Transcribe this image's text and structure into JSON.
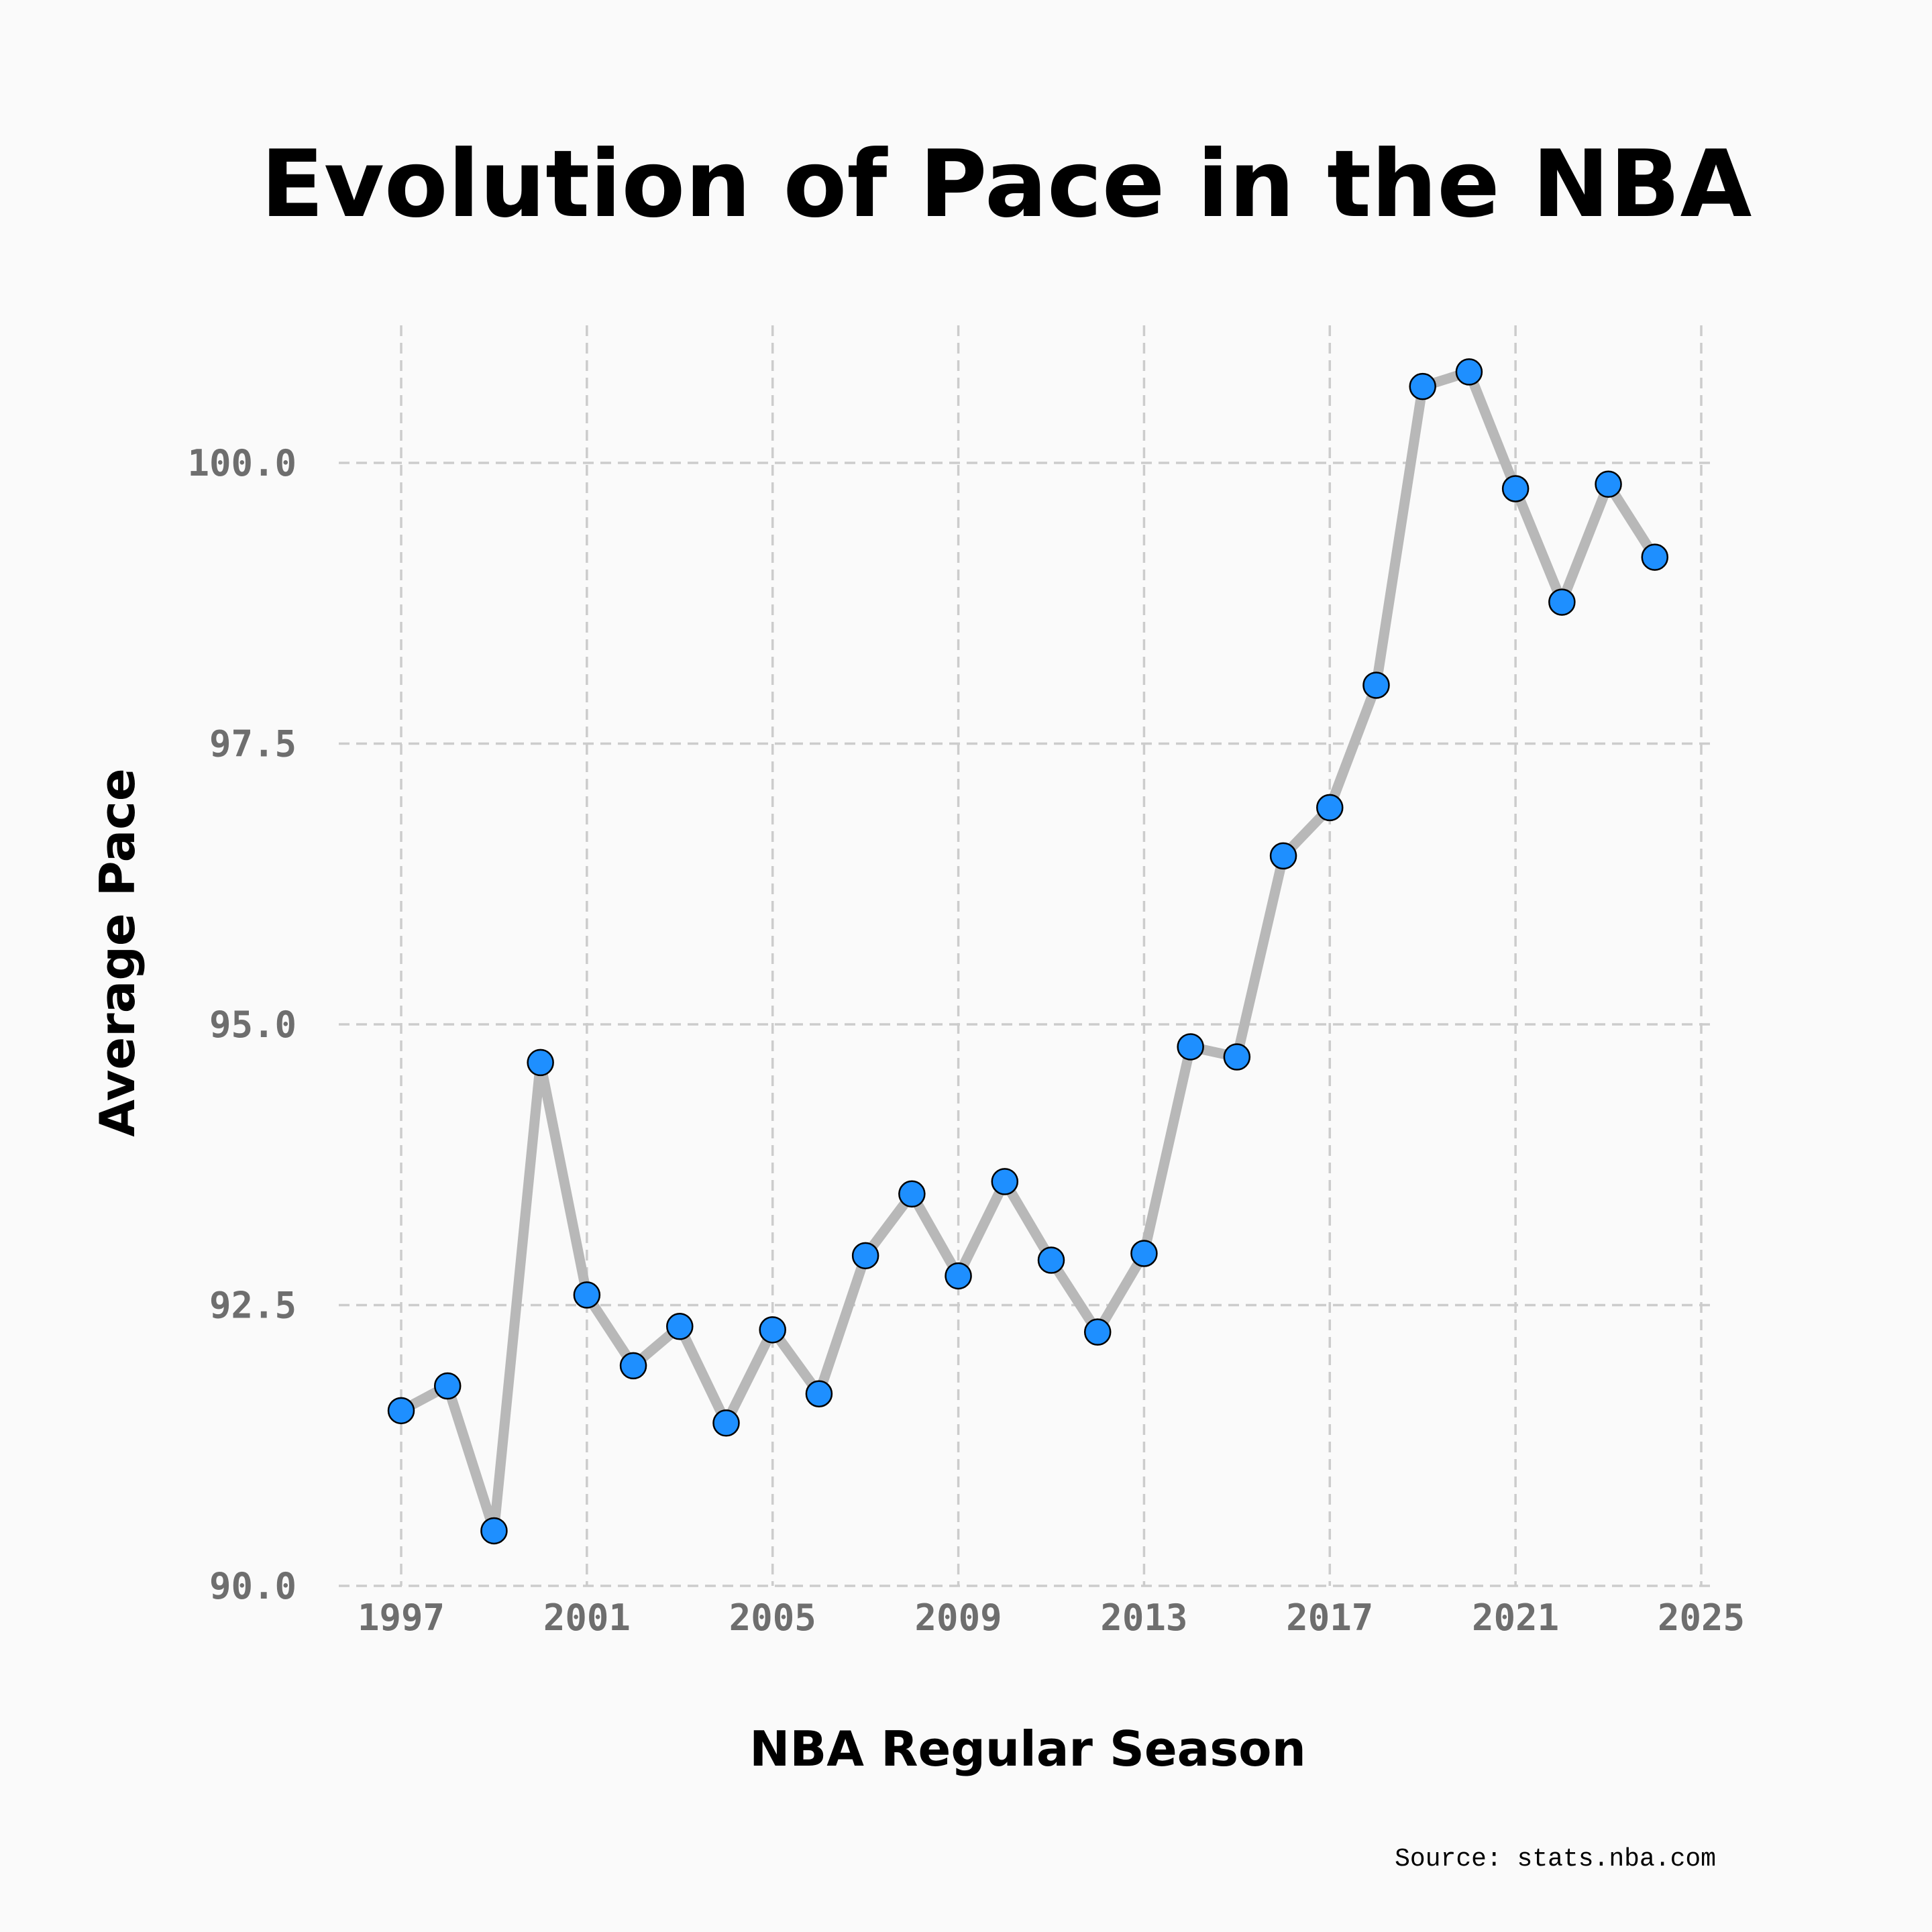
{
  "chart_data": {
    "type": "line",
    "title": "Evolution of Pace in the NBA",
    "xlabel": "NBA Regular Season",
    "ylabel": "Average Pace",
    "source": "Source: stats.nba.com",
    "xlim": [
      1997,
      2025
    ],
    "ylim": [
      90.0,
      100.0
    ],
    "x_ticks": [
      1997,
      2001,
      2005,
      2009,
      2013,
      2017,
      2021,
      2025
    ],
    "y_ticks": [
      "90.0",
      "92.5",
      "95.0",
      "97.5",
      "100.0"
    ],
    "grid": true,
    "series": [
      {
        "x": [
          1997,
          1998,
          1999,
          2000,
          2001,
          2002,
          2003,
          2004,
          2005,
          2006,
          2007,
          2008,
          2009,
          2010,
          2011,
          2012,
          2013,
          2014,
          2015,
          2016,
          2017,
          2018,
          2019,
          2020,
          2021,
          2022,
          2023,
          2024
        ],
        "y": [
          91.56,
          91.78,
          90.49,
          94.66,
          92.59,
          91.96,
          92.31,
          91.45,
          92.28,
          91.71,
          92.94,
          93.49,
          92.76,
          93.6,
          92.9,
          92.26,
          92.96,
          94.8,
          94.71,
          96.5,
          96.93,
          98.02,
          100.68,
          100.81,
          99.77,
          98.76,
          99.81,
          99.16
        ],
        "line_color": "#b8b8b8",
        "marker_color": "#1e8fff"
      }
    ]
  }
}
